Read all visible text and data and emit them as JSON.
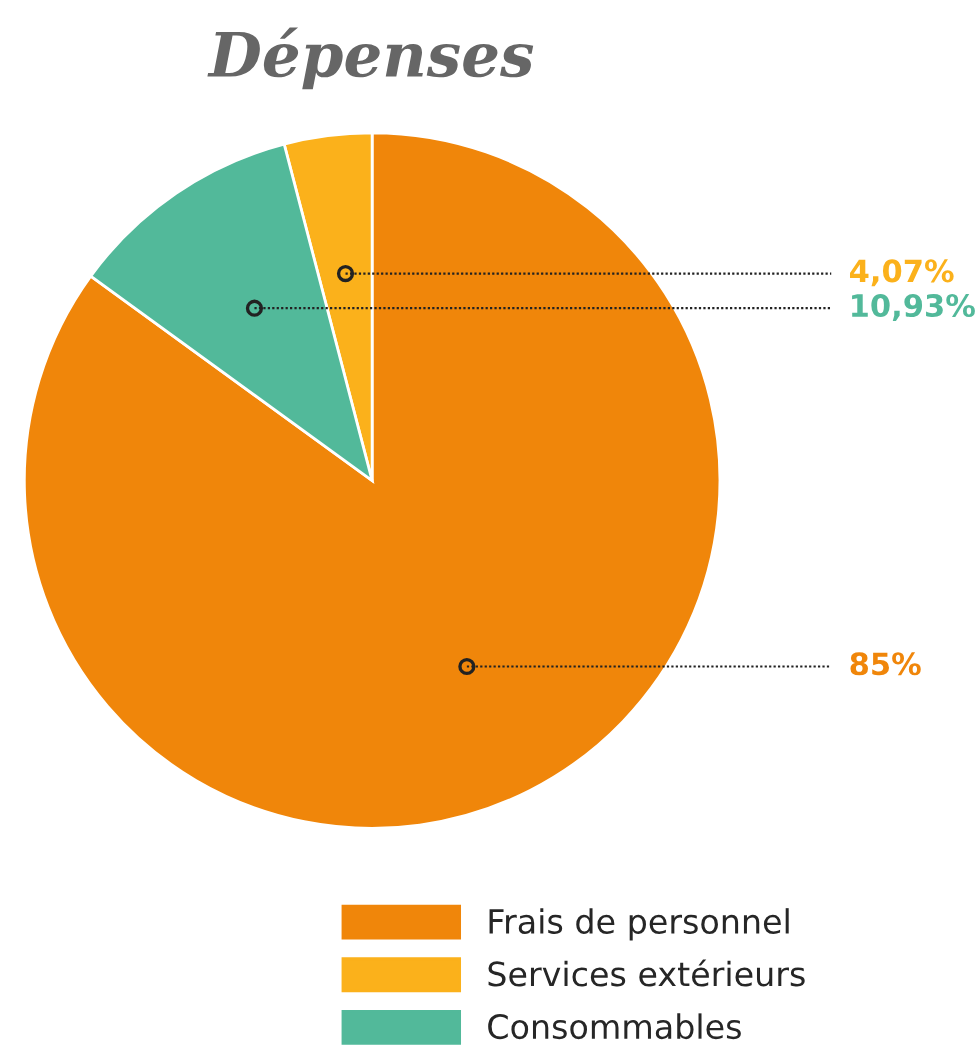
{
  "chart_data": {
    "type": "pie",
    "title": "Dépenses",
    "categories": [
      "Frais de personnel",
      "Services extérieurs",
      "Consommables"
    ],
    "values": [
      85,
      4.07,
      10.93
    ],
    "value_labels": [
      "85%",
      "4,07%",
      "10,93%"
    ],
    "colors": [
      "#f0860a",
      "#fbb11b",
      "#52b99a"
    ],
    "legend": "bottom"
  }
}
